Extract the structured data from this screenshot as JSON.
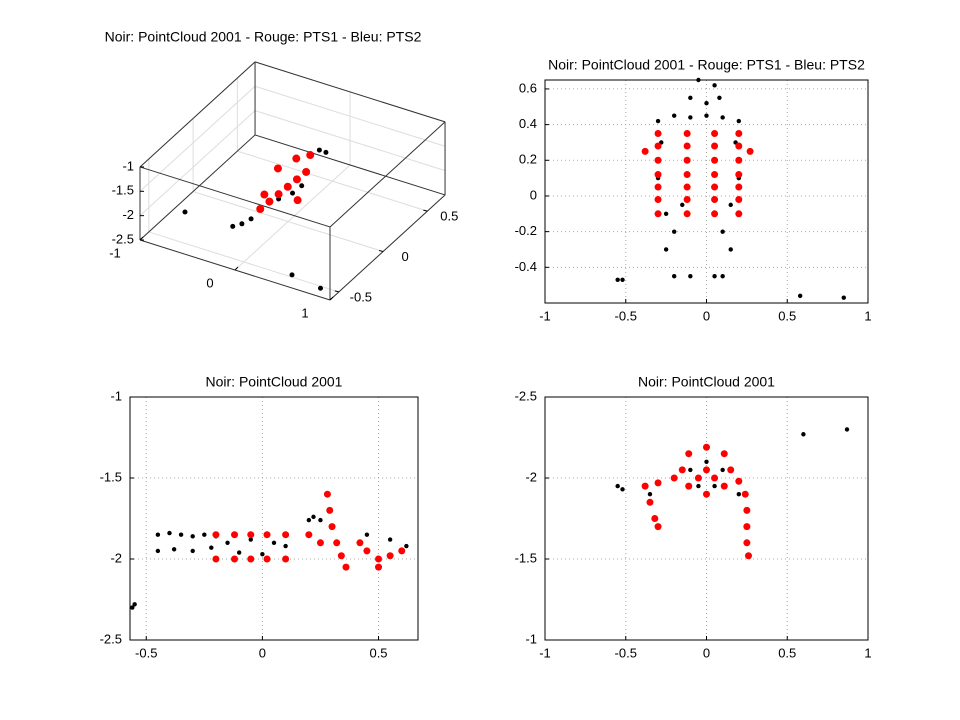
{
  "chart_data": [
    {
      "type": "scatter3d",
      "title": "Noir: PointCloud 2001 - Rouge: PTS1 - Bleu: PTS2",
      "xlim": [
        -1,
        1
      ],
      "ylim": [
        -0.6,
        0.7
      ],
      "zlim": [
        -2.5,
        -1
      ],
      "xticks": [
        -1,
        0,
        1
      ],
      "yticks": [
        -0.5,
        0,
        0.5
      ],
      "zticks": [
        -2.5,
        -2,
        -1.5,
        -1
      ],
      "grid": true,
      "series": [
        {
          "color": "#000000",
          "x": [
            -0.3,
            -0.25,
            -0.35,
            -0.1,
            0,
            0.05,
            0.05,
            0.1,
            -0.75,
            0.6,
            0.9
          ],
          "y": [
            -0.2,
            -0.15,
            -0.25,
            0,
            0.05,
            0.1,
            0.3,
            0.32,
            -0.36,
            -0.6,
            -0.6
          ],
          "z": [
            -2.4,
            -2.35,
            -2.4,
            -2.1,
            -2,
            -1.9,
            -1.5,
            -1.55,
            -2.17,
            -2.23,
            -2.32
          ]
        },
        {
          "color": "#ff0000",
          "x": [
            -0.2,
            -0.15,
            -0.1,
            -0.05,
            0,
            0.05,
            -0.25,
            0.1,
            -0.2,
            -0.1,
            0
          ],
          "y": [
            -0.1,
            -0.05,
            0,
            0.05,
            0.1,
            0.15,
            0,
            0,
            0.1,
            0.2,
            0.25
          ],
          "z": [
            -2.2,
            -2.1,
            -2,
            -1.9,
            -1.8,
            -1.7,
            -2.1,
            -2,
            -1.7,
            -1.6,
            -1.55
          ]
        }
      ]
    },
    {
      "type": "scatter",
      "title": "Noir: PointCloud 2001 - Rouge: PTS1 - Bleu: PTS2",
      "xlim": [
        -1,
        1
      ],
      "ylim": [
        -0.6,
        0.65
      ],
      "xticks": [
        -1,
        -0.5,
        0,
        0.5,
        1
      ],
      "yticks": [
        -0.4,
        -0.2,
        0,
        0.2,
        0.4,
        0.6
      ],
      "grid": true,
      "series": [
        {
          "color": "#000000",
          "x": [
            -0.05,
            0.05,
            0,
            -0.1,
            0.08,
            -0.3,
            -0.2,
            -0.1,
            0,
            0.1,
            0.2,
            -0.28,
            0.18,
            -0.3,
            0.2,
            -0.25,
            -0.15,
            0.15,
            -0.25,
            0.15,
            -0.2,
            -0.1,
            0.05,
            0.1,
            -0.2,
            0.1,
            -0.55,
            -0.52,
            0.58,
            0.85
          ],
          "y": [
            0.65,
            0.62,
            0.52,
            0.55,
            0.55,
            0.42,
            0.45,
            0.44,
            0.45,
            0.44,
            0.42,
            0.3,
            0.3,
            0.1,
            0.1,
            -0.1,
            -0.05,
            -0.05,
            -0.3,
            -0.3,
            -0.45,
            -0.45,
            -0.45,
            -0.45,
            -0.2,
            -0.2,
            -0.47,
            -0.47,
            -0.56,
            -0.57
          ]
        },
        {
          "color": "#ff0000",
          "x": [
            -0.3,
            -0.12,
            0.05,
            0.2,
            -0.3,
            -0.12,
            0.05,
            0.2,
            -0.3,
            -0.12,
            0.05,
            0.2,
            -0.3,
            -0.12,
            0.05,
            0.2,
            -0.3,
            -0.12,
            0.05,
            0.2,
            -0.3,
            -0.12,
            0.05,
            0.2,
            -0.3,
            -0.12,
            0.05,
            0.2,
            -0.38,
            0.27
          ],
          "y": [
            0.35,
            0.35,
            0.35,
            0.35,
            0.28,
            0.28,
            0.28,
            0.28,
            0.2,
            0.2,
            0.2,
            0.2,
            0.12,
            0.12,
            0.12,
            0.12,
            0.05,
            0.05,
            0.05,
            0.05,
            -0.02,
            -0.02,
            -0.02,
            -0.02,
            -0.1,
            -0.1,
            -0.1,
            -0.1,
            0.25,
            0.25
          ]
        }
      ]
    },
    {
      "type": "scatter",
      "title": "Noir: PointCloud 2001",
      "xlim": [
        -0.57,
        0.67
      ],
      "ylim": [
        -2.5,
        -1
      ],
      "xticks": [
        -0.5,
        0,
        0.5
      ],
      "yticks": [
        -2.5,
        -2,
        -1.5,
        -1
      ],
      "grid": true,
      "series": [
        {
          "color": "#000000",
          "x": [
            -0.45,
            -0.4,
            -0.35,
            -0.3,
            -0.25,
            -0.2,
            -0.45,
            -0.38,
            -0.3,
            -0.22,
            -0.15,
            -0.05,
            0.05,
            0.1,
            -0.1,
            0,
            0.2,
            0.22,
            0.25,
            0.45,
            0.55,
            0.62,
            -0.56,
            -0.55
          ],
          "y": [
            -1.85,
            -1.84,
            -1.85,
            -1.86,
            -1.85,
            -1.86,
            -1.95,
            -1.94,
            -1.95,
            -1.93,
            -1.9,
            -1.88,
            -1.9,
            -1.92,
            -1.96,
            -1.97,
            -1.76,
            -1.74,
            -1.76,
            -1.85,
            -1.88,
            -1.92,
            -2.3,
            -2.28
          ]
        },
        {
          "color": "#ff0000",
          "x": [
            -0.2,
            -0.2,
            -0.12,
            -0.12,
            -0.05,
            -0.05,
            0.02,
            0.02,
            0.1,
            0.1,
            0.28,
            0.29,
            0.3,
            0.32,
            0.34,
            0.36,
            0.2,
            0.25,
            0.45,
            0.5,
            0.55,
            0.6,
            0.5,
            0.42
          ],
          "y": [
            -1.85,
            -2,
            -1.85,
            -2,
            -1.85,
            -2,
            -1.85,
            -2,
            -1.85,
            -2,
            -1.6,
            -1.7,
            -1.8,
            -1.9,
            -1.98,
            -2.05,
            -1.85,
            -1.9,
            -1.95,
            -2,
            -1.98,
            -1.95,
            -2.05,
            -1.9
          ]
        }
      ]
    },
    {
      "type": "scatter",
      "title": "Noir: PointCloud 2001",
      "xlim": [
        -1,
        1
      ],
      "ylim": [
        -2.5,
        -1
      ],
      "y_reverse": true,
      "xticks": [
        -1,
        -0.5,
        0,
        0.5,
        1
      ],
      "yticks": [
        -2.5,
        -2,
        -1.5,
        -1
      ],
      "grid": true,
      "series": [
        {
          "color": "#000000",
          "x": [
            -0.55,
            -0.52,
            0.6,
            0.87,
            -0.1,
            0.1,
            0,
            -0.05,
            0.05,
            -0.35,
            0.2
          ],
          "y": [
            -1.95,
            -1.93,
            -2.27,
            -2.3,
            -2.05,
            -2.05,
            -2.1,
            -1.95,
            -1.95,
            -1.9,
            -1.9
          ]
        },
        {
          "color": "#ff0000",
          "x": [
            0.15,
            0.11,
            0,
            -0.11,
            -0.15,
            -0.11,
            0,
            0.11,
            0,
            -0.05,
            0.05,
            -0.2,
            -0.3,
            -0.38,
            -0.35,
            -0.32,
            -0.3,
            0.2,
            0.24,
            0.25,
            0.25,
            0.25,
            0.26
          ],
          "y": [
            -2.05,
            -2.15,
            -2.19,
            -2.15,
            -2.05,
            -1.95,
            -1.9,
            -1.95,
            -2.05,
            -2,
            -2,
            -2,
            -1.97,
            -1.95,
            -1.85,
            -1.75,
            -1.7,
            -1.98,
            -1.9,
            -1.8,
            -1.7,
            -1.6,
            -1.52
          ]
        }
      ]
    }
  ]
}
